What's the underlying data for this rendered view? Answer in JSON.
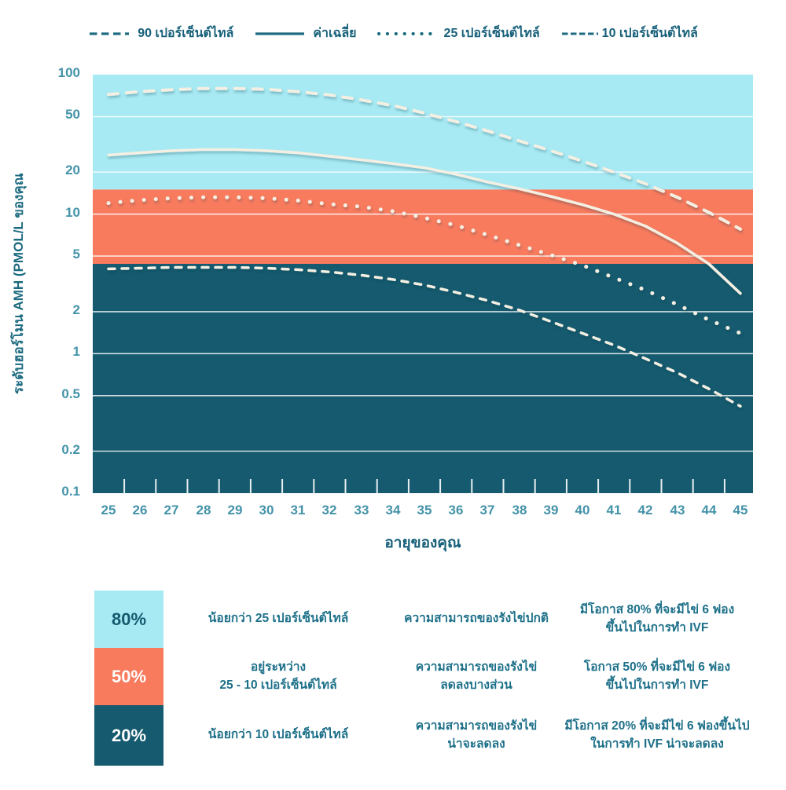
{
  "colors": {
    "band_light_blue": "#A7EAF3",
    "band_coral": "#F87B5E",
    "band_teal": "#155A6E",
    "curve": "#F4EFE3",
    "legend_marker": "#1D6B80",
    "tick_label": "#4493A9",
    "title_text": "#17607A",
    "table_text": "#1D7089",
    "percent_dark_text": "#145A6E",
    "percent_light_text": "#FFFFFF"
  },
  "legend": {
    "items": [
      {
        "label": "90 เปอร์เซ็นต์ไทล์",
        "style": "dash-long"
      },
      {
        "label": "ค่าเฉลี่ย",
        "style": "solid"
      },
      {
        "label": "25 เปอร์เซ็นต์ไทล์",
        "style": "dotted"
      },
      {
        "label": "10 เปอร์เซ็นต์ไทล์",
        "style": "dash-short"
      }
    ]
  },
  "chart_data": {
    "type": "line",
    "y_scale": "log",
    "ylim": [
      0.1,
      100
    ],
    "x_label": "อายุของคุณ",
    "y_label": "ระดับฮอร์โมน AMH (PMOL/L ของคุณ",
    "x": [
      25,
      26,
      27,
      28,
      29,
      30,
      31,
      32,
      33,
      34,
      35,
      36,
      37,
      38,
      39,
      40,
      41,
      42,
      43,
      44,
      45
    ],
    "y_ticks": [
      100,
      50,
      20,
      10,
      5,
      2,
      1,
      0.5,
      0.2,
      0.1
    ],
    "grid_values": [
      50,
      20,
      10,
      5,
      2,
      1,
      0.5,
      0.2
    ],
    "bands": [
      {
        "name": "above-25th-percentile",
        "zone": "80%",
        "from": 15,
        "to": 100,
        "color": "#A7EAF3"
      },
      {
        "name": "between-25th-and-10th",
        "zone": "50%",
        "from": 4.4,
        "to": 15,
        "color": "#F87B5E"
      },
      {
        "name": "below-10th-percentile",
        "zone": "20%",
        "from": 0.1,
        "to": 4.4,
        "color": "#155A6E"
      }
    ],
    "series": [
      {
        "name": "90 เปอร์เซ็นต์ไทล์",
        "style": "dash-long",
        "values": [
          72,
          75.5,
          78,
          79.5,
          79.5,
          78.5,
          75.5,
          71.5,
          66,
          60,
          53,
          46,
          39.5,
          33.5,
          28.5,
          24,
          20,
          16.5,
          13.2,
          10.3,
          7.8
        ]
      },
      {
        "name": "ค่าเฉลี่ย",
        "style": "solid",
        "values": [
          26.5,
          27.5,
          28.5,
          29,
          29,
          28.5,
          27.5,
          26,
          24.5,
          23,
          21.5,
          19.3,
          17,
          15.2,
          13.4,
          11.7,
          10,
          8.2,
          6.2,
          4.4,
          2.7
        ]
      },
      {
        "name": "25 เปอร์เซ็นต์ไทล์",
        "style": "dotted",
        "values": [
          12,
          12.6,
          13,
          13.2,
          13.2,
          13,
          12.5,
          11.8,
          11.3,
          10.5,
          9.4,
          8.3,
          7.1,
          6,
          5.1,
          4.3,
          3.5,
          2.85,
          2.25,
          1.75,
          1.4
        ]
      },
      {
        "name": "10 เปอร์เซ็นต์ไทล์",
        "style": "dash-short",
        "values": [
          4.05,
          4.1,
          4.15,
          4.15,
          4.15,
          4.1,
          4,
          3.85,
          3.65,
          3.4,
          3.1,
          2.75,
          2.4,
          2.05,
          1.7,
          1.4,
          1.15,
          0.92,
          0.73,
          0.56,
          0.42
        ]
      }
    ],
    "legend_position": "top"
  },
  "table": {
    "rows": [
      {
        "percent": "80%",
        "box_color": "#A7EAF3",
        "percent_color": "#145A6E",
        "range": "น้อยกว่า 25 เปอร์เซ็นต์ไทล์",
        "status": "ความสามารถของรังไข่ปกติ",
        "ivf": "มีโอกาส 80% ที่จะมีไข่ 6 ฟอง\nขึ้นไปในการทำ IVF"
      },
      {
        "percent": "50%",
        "box_color": "#F87B5E",
        "percent_color": "#FFFFFF",
        "range": "อยู่ระหว่าง\n25 - 10 เปอร์เซ็นต์ไทล์",
        "status": "ความสามารถของรังไข่\nลดลงบางส่วน",
        "ivf": "โอกาส 50% ที่จะมีไข่ 6 ฟอง\nขึ้นไปในการทำ IVF"
      },
      {
        "percent": "20%",
        "box_color": "#155A6E",
        "percent_color": "#FFFFFF",
        "range": "น้อยกว่า 10 เปอร์เซ็นต์ไทล์",
        "status": "ความสามารถของรังไข่\nน่าจะลดลง",
        "ivf": "มีโอกาส 20% ที่จะมีไข่ 6 ฟองขึ้นไป\nในการทำ IVF น่าจะลดลง"
      }
    ]
  }
}
